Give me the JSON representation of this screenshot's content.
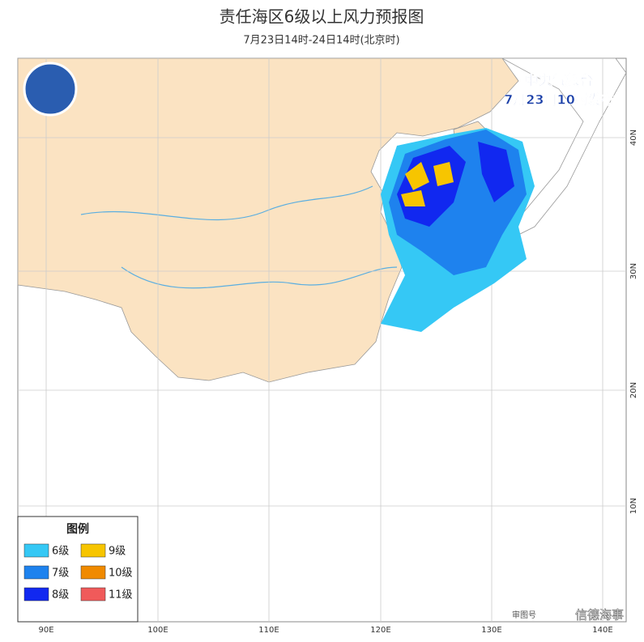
{
  "header": {
    "title": "责任海区6级以上风力预报图",
    "subtitle": "7月23日14时-24日14时(北京时)"
  },
  "issuer": {
    "name": "中央气象台",
    "time": "7月23日10时发布"
  },
  "legend": {
    "title": "图例",
    "items": [
      {
        "label": "6级",
        "color": "#35c8f5"
      },
      {
        "label": "9级",
        "color": "#f7c500"
      },
      {
        "label": "7级",
        "color": "#1e82ee"
      },
      {
        "label": "10级",
        "color": "#f08a00"
      },
      {
        "label": "8级",
        "color": "#1128f0"
      },
      {
        "label": "11级",
        "color": "#f05a5a"
      }
    ]
  },
  "axes": {
    "lon": [
      "90E",
      "100E",
      "110E",
      "120E",
      "130E",
      "140E"
    ],
    "lat": [
      "40N",
      "30N",
      "20N",
      "10N"
    ]
  },
  "footer": {
    "note": "审图号",
    "watermark": "信德海事"
  }
}
